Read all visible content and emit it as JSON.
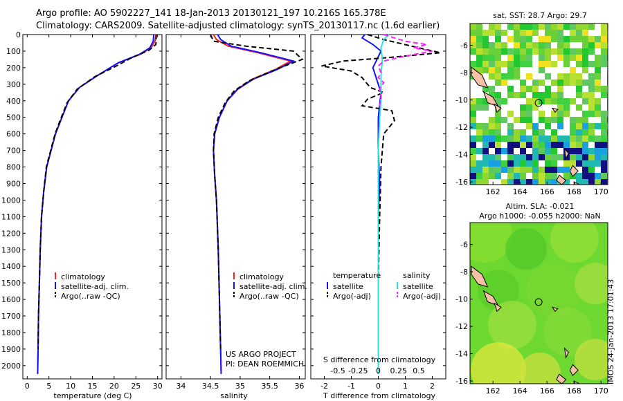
{
  "header": {
    "line1": "Argo profile: AO 5902227_141 18-Jan-2013 20130121_197 10.216S 165.378E",
    "line2": "Climatology: CARS2009. Satellite-adjusted climatology: synTS_20130117.nc (1.6d earlier)"
  },
  "colors": {
    "climatology": "#ff2020",
    "satellite": "#1010ff",
    "argo": "#000000",
    "salinity_satellite": "#30e0e0",
    "salinity_argo": "#ff20ff"
  },
  "chart_data": [
    {
      "type": "line",
      "panel": "temperature",
      "xlabel": "temperature (deg C)",
      "ylim": [
        2080,
        0
      ],
      "xlim": [
        -1,
        31
      ],
      "xticks": [
        0,
        5,
        10,
        15,
        20,
        25,
        30
      ],
      "yticks": [
        0,
        100,
        200,
        300,
        400,
        500,
        600,
        700,
        800,
        900,
        1000,
        1100,
        1200,
        1300,
        1400,
        1500,
        1600,
        1700,
        1800,
        1900,
        2000
      ],
      "legend": [
        "climatology",
        "satellite-adj. clim.",
        "Argo(..raw -QC)"
      ],
      "series": [
        {
          "name": "climatology",
          "color": "#ff2020",
          "dashed": false,
          "x": [
            29.6,
            29.4,
            28.5,
            26,
            21,
            16,
            12,
            9.5,
            8,
            6.5,
            5.5,
            4.5,
            3.8,
            3.3,
            3.0,
            2.8,
            2.6,
            2.5,
            2.4
          ],
          "y": [
            0,
            40,
            80,
            120,
            170,
            250,
            320,
            400,
            500,
            600,
            700,
            800,
            950,
            1100,
            1300,
            1500,
            1700,
            1900,
            2050
          ]
        },
        {
          "name": "satellite-adj. clim.",
          "color": "#1010ff",
          "dashed": false,
          "x": [
            29.1,
            29.0,
            28.2,
            25.8,
            21,
            16,
            12,
            9.5,
            8,
            6.5,
            5.5,
            4.5,
            3.8,
            3.3,
            3.0,
            2.8,
            2.6,
            2.5,
            2.4
          ],
          "y": [
            0,
            40,
            80,
            120,
            170,
            250,
            320,
            400,
            500,
            600,
            700,
            800,
            950,
            1100,
            1300,
            1500,
            1700,
            1900,
            2050
          ]
        },
        {
          "name": "Argo(..raw -QC)",
          "color": "#000000",
          "dashed": true,
          "x": [
            29.7,
            29.6,
            28,
            24,
            20.5,
            15.5,
            11.5,
            9.2,
            7.7,
            6.4,
            5.4,
            4.4,
            3.8,
            3.3,
            3.0,
            2.8,
            2.6,
            2.5
          ],
          "y": [
            0,
            60,
            95,
            140,
            190,
            255,
            330,
            410,
            510,
            600,
            700,
            800,
            950,
            1100,
            1300,
            1500,
            1700,
            1900
          ]
        }
      ]
    },
    {
      "type": "line",
      "panel": "salinity",
      "xlabel": "salinity",
      "ylim": [
        2080,
        0
      ],
      "xlim": [
        33.75,
        36.1
      ],
      "xticks": [
        34,
        34.5,
        35,
        35.5,
        36
      ],
      "legend": [
        "climatology",
        "satellite-adj. clim.",
        "Argo(..raw -QC)"
      ],
      "annotation": [
        "US ARGO PROJECT",
        "PI: DEAN ROEMMICH"
      ],
      "series": [
        {
          "name": "climatology",
          "color": "#ff2020",
          "dashed": false,
          "x": [
            34.55,
            34.6,
            34.8,
            35.3,
            35.85,
            35.6,
            35.2,
            34.95,
            34.78,
            34.65,
            34.57,
            34.55,
            34.57,
            34.6,
            34.63,
            34.65,
            34.67,
            34.68
          ],
          "y": [
            0,
            30,
            70,
            110,
            160,
            210,
            270,
            330,
            400,
            500,
            600,
            700,
            850,
            1000,
            1300,
            1600,
            1900,
            2050
          ]
        },
        {
          "name": "satellite-adj. clim.",
          "color": "#1010ff",
          "dashed": false,
          "x": [
            34.62,
            34.67,
            34.85,
            35.35,
            35.9,
            35.63,
            35.22,
            34.96,
            34.78,
            34.65,
            34.57,
            34.55,
            34.57,
            34.6,
            34.63,
            34.65,
            34.67,
            34.68
          ],
          "y": [
            0,
            30,
            70,
            110,
            160,
            210,
            270,
            330,
            400,
            500,
            600,
            700,
            850,
            1000,
            1300,
            1600,
            1900,
            2050
          ]
        },
        {
          "name": "Argo(..raw -QC)",
          "color": "#000000",
          "dashed": true,
          "x": [
            34.5,
            34.55,
            35.1,
            35.9,
            36.05,
            35.6,
            35.15,
            34.9,
            34.75,
            34.63,
            34.56,
            34.55,
            34.57,
            34.6,
            34.63,
            34.65,
            34.67
          ],
          "y": [
            0,
            40,
            70,
            100,
            150,
            210,
            280,
            340,
            410,
            500,
            600,
            700,
            850,
            1000,
            1300,
            1600,
            1900
          ]
        }
      ]
    },
    {
      "type": "line",
      "panel": "difference",
      "xlabel": "T difference from climatology",
      "secondary_xlabel": "S difference from climatology",
      "ylim": [
        2080,
        0
      ],
      "xlim": [
        -2.5,
        2.5
      ],
      "xticks": [
        -2,
        -1,
        0,
        1,
        2
      ],
      "secondary_ticks": [
        "-0.5",
        "-0.25",
        "0",
        "0.25",
        "0.5"
      ],
      "legend_temperature": [
        "temperature",
        "satellite",
        "Argo(-adj)"
      ],
      "legend_salinity": [
        "salinity",
        "satellite",
        "Argo(-adj)"
      ],
      "series": [
        {
          "name": "temperature satellite",
          "color": "#1010ff",
          "dashed": false,
          "x": [
            -0.5,
            -0.6,
            -0.2,
            0.1,
            -0.2,
            0.1,
            0.0,
            0.0,
            0.05,
            0.0,
            0.0,
            0.0,
            0.0,
            0.0
          ],
          "y": [
            0,
            20,
            60,
            100,
            200,
            350,
            500,
            700,
            900,
            1100,
            1300,
            1600,
            1900,
            2050
          ]
        },
        {
          "name": "temperature Argo(-adj)",
          "color": "#000000",
          "dashed": true,
          "x": [
            -0.4,
            0.2,
            1.5,
            2.3,
            0.3,
            -1.3,
            -2.1,
            -1.0,
            -0.6,
            -0.3,
            0.2,
            -0.4,
            -0.6,
            0.5,
            0.6,
            0.2,
            0.1,
            0.05,
            0.0,
            0.0
          ],
          "y": [
            0,
            30,
            80,
            110,
            140,
            160,
            190,
            220,
            260,
            320,
            350,
            390,
            430,
            460,
            520,
            600,
            800,
            1100,
            1500,
            1900
          ]
        },
        {
          "name": "salinity satellite",
          "color": "#30e0e0",
          "dashed": false,
          "x": [
            0.4,
            0.2,
            0.1,
            0.15,
            0.1,
            0.1,
            0.05,
            0.0,
            0.0,
            0.0,
            0.0,
            0.0,
            0.0,
            0.0
          ],
          "y": [
            0,
            30,
            80,
            150,
            250,
            400,
            500,
            700,
            900,
            1100,
            1400,
            1700,
            1950,
            2050
          ]
        },
        {
          "name": "salinity Argo(-adj)",
          "color": "#ff20ff",
          "dashed": true,
          "x": [
            0.2,
            1.0,
            1.8,
            1.3,
            2.0,
            1.0,
            0.2,
            0.0,
            0.1,
            0.0,
            0.2,
            0.05,
            0.1,
            0.1,
            0.0
          ],
          "y": [
            0,
            40,
            60,
            80,
            100,
            130,
            160,
            190,
            230,
            260,
            290,
            330,
            360,
            400,
            450
          ]
        }
      ]
    },
    {
      "type": "heatmap",
      "panel": "SST map",
      "title": "sat. SST: 28.7 Argo: 29.7",
      "xlim": [
        160.3,
        170.5
      ],
      "ylim": [
        -16.2,
        -4.4
      ],
      "xticks": [
        162,
        164,
        166,
        168,
        170
      ],
      "yticks": [
        -6,
        -8,
        -10,
        -12,
        -14,
        -16
      ],
      "marker": {
        "lon": 165.378,
        "lat": -10.216
      }
    },
    {
      "type": "heatmap",
      "panel": "SLA map",
      "title_line1": "Altim. SLA: -0.021",
      "title_line2": "Argo h1000: -0.055 h2000: NaN",
      "xlim": [
        160.3,
        170.5
      ],
      "ylim": [
        -16.2,
        -4.4
      ],
      "xticks": [
        162,
        164,
        166,
        168,
        170
      ],
      "yticks": [
        -6,
        -8,
        -10,
        -12,
        -14,
        -16
      ],
      "marker": {
        "lon": 165.378,
        "lat": -10.216
      }
    }
  ],
  "footer": {
    "stamp": "IMOS 24-Jan-2013 17:01:43"
  }
}
